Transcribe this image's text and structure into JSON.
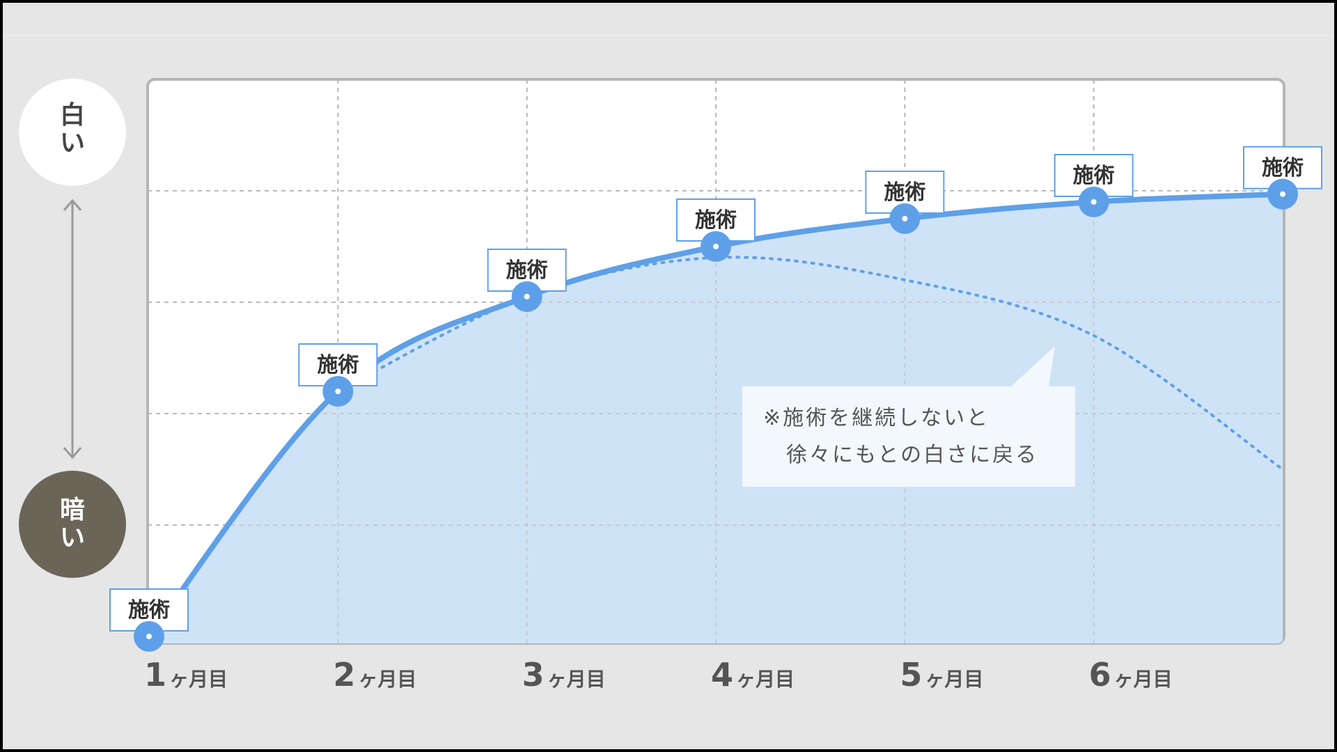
{
  "chart_data": {
    "type": "area",
    "x": [
      "1ヶ月目",
      "2ヶ月目",
      "3ヶ月目",
      "4ヶ月目",
      "5ヶ月目",
      "6ヶ月目",
      ""
    ],
    "x_positions": [
      1,
      2,
      3,
      4,
      5,
      6,
      7
    ],
    "series": [
      {
        "values": [
          0,
          2.2,
          3.05,
          3.5,
          3.75,
          3.9,
          3.97
        ]
      },
      {
        "values_dotted": [
          [
            2,
            2.2
          ],
          [
            3,
            3.05
          ],
          [
            4,
            3.4
          ],
          [
            5,
            3.2
          ],
          [
            6,
            2.7
          ],
          [
            7,
            1.5
          ]
        ]
      }
    ],
    "ylim": [
      0,
      5
    ],
    "grid": true,
    "y_axis": {
      "top_label": "白い",
      "bottom_label": "暗い"
    },
    "point_label": "施術",
    "annotation": [
      "※施術を継続しないと",
      "　徐々にもとの白さに戻る"
    ]
  },
  "colors": {
    "line": "#5ea0e8",
    "fill": "#cfe3f7",
    "dark_circle": "#6a6557",
    "background": "#e6e6e6"
  }
}
